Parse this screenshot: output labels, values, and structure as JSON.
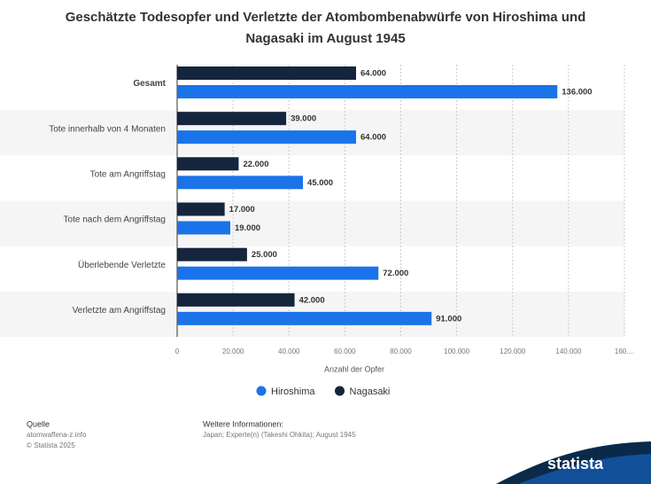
{
  "chart_data": {
    "type": "bar",
    "orientation": "horizontal",
    "title": "Geschätzte Todesopfer und Verletzte der Atombombenabwürfe von Hiroshima und Nagasaki im August 1945",
    "categories": [
      "Gesamt",
      "Tote innerhalb von 4 Monaten",
      "Tote am Angriffstag",
      "Tote nach dem Angriffstag",
      "Überlebende Verletzte",
      "Verletzte am Angriffstag"
    ],
    "series": [
      {
        "name": "Hiroshima",
        "color": "#1a73e8",
        "values": [
          136000,
          64000,
          45000,
          19000,
          72000,
          91000
        ],
        "value_labels": [
          "136.000",
          "64.000",
          "45.000",
          "19.000",
          "72.000",
          "91.000"
        ]
      },
      {
        "name": "Nagasaki",
        "color": "#14253d",
        "values": [
          64000,
          39000,
          22000,
          17000,
          25000,
          42000
        ],
        "value_labels": [
          "64.000",
          "39.000",
          "22.000",
          "17.000",
          "25.000",
          "42.000"
        ]
      }
    ],
    "xlabel": "Anzahl der Opfer",
    "xlim": [
      0,
      160000
    ],
    "xticks": [
      0,
      {
        "value": 20000,
        "label": "20.000"
      },
      {
        "value": 40000,
        "label": "40.000"
      },
      {
        "value": 60000,
        "label": "60.000"
      },
      {
        "value": 80000,
        "label": "80.000"
      },
      {
        "value": 100000,
        "label": "100.000"
      },
      {
        "value": 120000,
        "label": "120.000"
      },
      {
        "value": 140000,
        "label": "140.000"
      },
      {
        "value": 160000,
        "label": "160...."
      }
    ],
    "grid": true
  },
  "footer": {
    "source_label": "Quelle",
    "source": "atomwaffena-z.info",
    "copyright": "© Statista 2025",
    "info_label": "Weitere Informationen:",
    "info": "Japan; Experte(n) (Takeshi Ohkita); August 1945",
    "brand": "statista"
  }
}
